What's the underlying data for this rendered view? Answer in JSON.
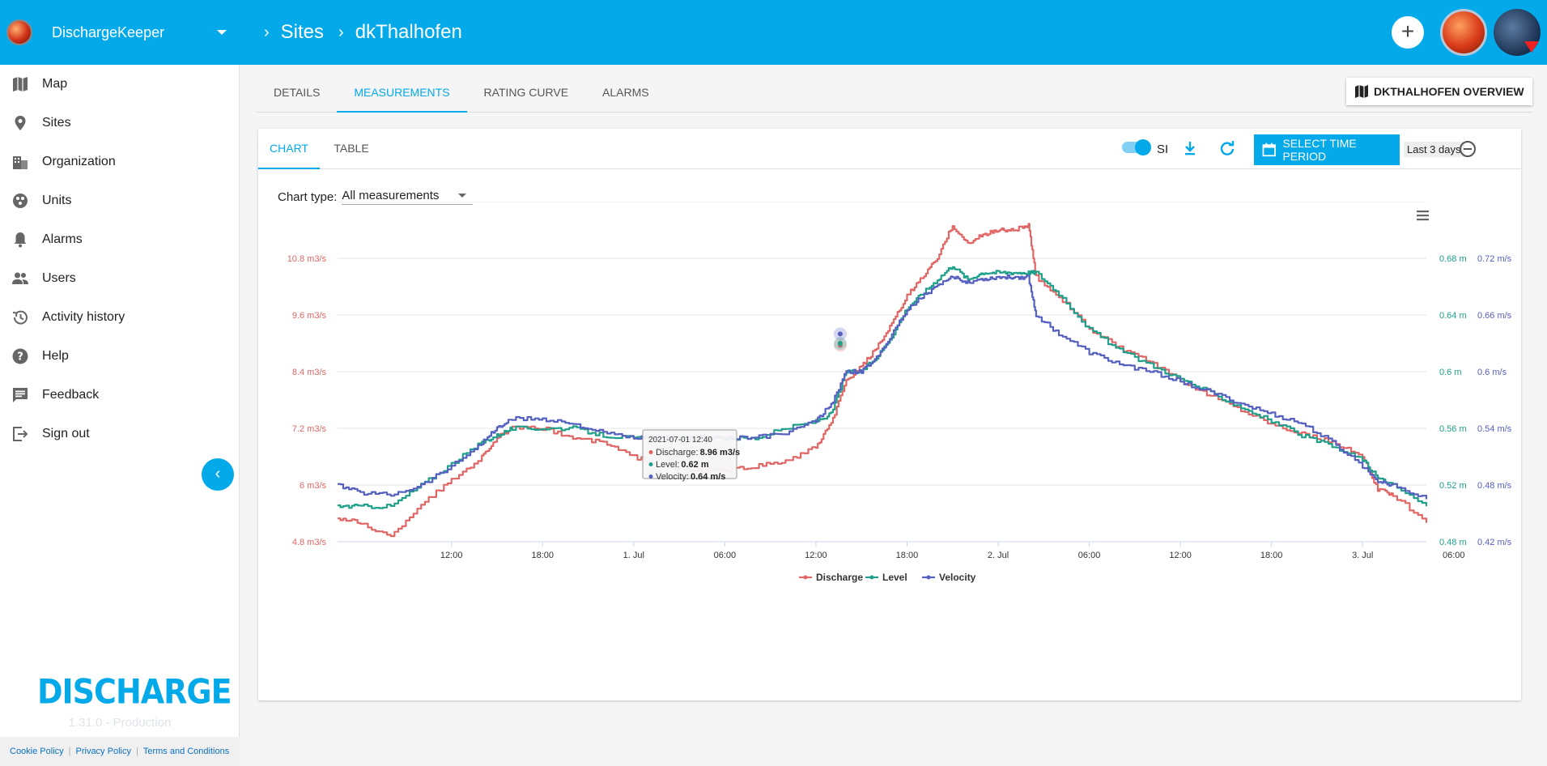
{
  "app": {
    "name": "DischargeKeeper"
  },
  "breadcrumb": {
    "items": [
      "Sites",
      "dkThalhofen"
    ]
  },
  "sidebar": {
    "items": [
      {
        "label": "Map",
        "icon": "map-icon"
      },
      {
        "label": "Sites",
        "icon": "pin-icon"
      },
      {
        "label": "Organization",
        "icon": "building-icon"
      },
      {
        "label": "Units",
        "icon": "units-icon"
      },
      {
        "label": "Alarms",
        "icon": "bell-icon"
      },
      {
        "label": "Users",
        "icon": "users-icon"
      },
      {
        "label": "Activity history",
        "icon": "history-icon"
      },
      {
        "label": "Help",
        "icon": "help-icon"
      },
      {
        "label": "Feedback",
        "icon": "feedback-icon"
      },
      {
        "label": "Sign out",
        "icon": "sign-out-icon"
      }
    ],
    "brand": "DISCHARGE",
    "version": "1.31.0 - Production",
    "footer": [
      "Cookie Policy",
      "Privacy Policy",
      "Terms and Conditions"
    ]
  },
  "tabs": [
    "DETAILS",
    "MEASUREMENTS",
    "RATING CURVE",
    "ALARMS"
  ],
  "overview_button": "DKTHALHOFEN OVERVIEW",
  "card": {
    "tabs": [
      "CHART",
      "TABLE"
    ],
    "si_label": "SI",
    "select_period": "SELECT TIME PERIOD",
    "last_period": "Last 3 days",
    "chart_type_label": "Chart type:",
    "chart_type_value": "All measurements"
  },
  "colors": {
    "accent": "#04a9e9",
    "discharge": "#e06666",
    "level": "#20a08a",
    "velocity": "#5560c0"
  },
  "chart_data": {
    "type": "line",
    "x_ticks": [
      "12:00",
      "18:00",
      "1. Jul",
      "06:00",
      "12:00",
      "18:00",
      "2. Jul",
      "06:00",
      "12:00",
      "18:00",
      "3. Jul",
      "06:00"
    ],
    "y_left_ticks": [
      "4.8 m3/s",
      "6 m3/s",
      "7.2 m3/s",
      "8.4 m3/s",
      "9.6 m3/s",
      "10.8 m3/s"
    ],
    "y_level_ticks": [
      "0.48 m",
      "0.52 m",
      "0.56 m",
      "0.6 m",
      "0.64 m",
      "0.68 m"
    ],
    "y_velocity_ticks": [
      "0.42 m/s",
      "0.48 m/s",
      "0.54 m/s",
      "0.6 m/s",
      "0.66 m/s",
      "0.72 m/s"
    ],
    "ylim_discharge": [
      4.8,
      12.0
    ],
    "ylim_level": [
      0.48,
      0.72
    ],
    "ylim_velocity": [
      0.42,
      0.78
    ],
    "x_hours": [
      -7.5,
      64.2
    ],
    "series": [
      {
        "name": "Discharge",
        "key": "discharge",
        "points": [
          [
            -7.5,
            5.3
          ],
          [
            -6,
            5.2
          ],
          [
            -4,
            4.9
          ],
          [
            -2,
            5.6
          ],
          [
            0,
            6.1
          ],
          [
            2,
            6.6
          ],
          [
            3,
            7.0
          ],
          [
            4,
            7.2
          ],
          [
            6,
            7.2
          ],
          [
            8,
            7.0
          ],
          [
            10,
            6.9
          ],
          [
            12,
            6.6
          ],
          [
            14,
            6.4
          ],
          [
            16,
            6.3
          ],
          [
            18,
            6.3
          ],
          [
            20,
            6.4
          ],
          [
            22,
            6.5
          ],
          [
            24,
            6.8
          ],
          [
            25,
            7.3
          ],
          [
            26,
            8.2
          ],
          [
            27,
            8.5
          ],
          [
            28,
            8.9
          ],
          [
            29,
            9.4
          ],
          [
            30,
            10.0
          ],
          [
            31,
            10.4
          ],
          [
            32,
            10.8
          ],
          [
            33,
            11.5
          ],
          [
            34,
            11.1
          ],
          [
            35,
            11.3
          ],
          [
            36,
            11.4
          ],
          [
            37,
            11.4
          ],
          [
            38,
            11.5
          ],
          [
            38.5,
            10.4
          ],
          [
            40,
            10.0
          ],
          [
            42,
            9.3
          ],
          [
            44,
            8.9
          ],
          [
            46,
            8.6
          ],
          [
            48,
            8.2
          ],
          [
            50,
            7.9
          ],
          [
            52,
            7.6
          ],
          [
            54,
            7.3
          ],
          [
            56,
            7.1
          ],
          [
            58,
            6.9
          ],
          [
            60,
            6.6
          ],
          [
            61,
            5.9
          ],
          [
            62,
            5.8
          ],
          [
            64.2,
            5.2
          ]
        ]
      },
      {
        "name": "Level",
        "key": "level",
        "points": [
          [
            -7.5,
            0.505
          ],
          [
            -6,
            0.505
          ],
          [
            -4,
            0.505
          ],
          [
            -2,
            0.52
          ],
          [
            0,
            0.535
          ],
          [
            2,
            0.55
          ],
          [
            3,
            0.555
          ],
          [
            4,
            0.56
          ],
          [
            6,
            0.56
          ],
          [
            8,
            0.56
          ],
          [
            10,
            0.555
          ],
          [
            12,
            0.553
          ],
          [
            14,
            0.553
          ],
          [
            16,
            0.553
          ],
          [
            18,
            0.553
          ],
          [
            20,
            0.553
          ],
          [
            22,
            0.56
          ],
          [
            24,
            0.565
          ],
          [
            25,
            0.57
          ],
          [
            26,
            0.6
          ],
          [
            27,
            0.6
          ],
          [
            28,
            0.61
          ],
          [
            29,
            0.625
          ],
          [
            30,
            0.645
          ],
          [
            31,
            0.655
          ],
          [
            32,
            0.665
          ],
          [
            33,
            0.675
          ],
          [
            34,
            0.665
          ],
          [
            35,
            0.67
          ],
          [
            36,
            0.67
          ],
          [
            37,
            0.67
          ],
          [
            38,
            0.67
          ],
          [
            38.5,
            0.67
          ],
          [
            40,
            0.655
          ],
          [
            42,
            0.63
          ],
          [
            44,
            0.615
          ],
          [
            46,
            0.605
          ],
          [
            48,
            0.595
          ],
          [
            50,
            0.585
          ],
          [
            52,
            0.575
          ],
          [
            54,
            0.565
          ],
          [
            56,
            0.555
          ],
          [
            58,
            0.547
          ],
          [
            60,
            0.538
          ],
          [
            61,
            0.525
          ],
          [
            62,
            0.52
          ],
          [
            64.2,
            0.505
          ]
        ]
      },
      {
        "name": "Velocity",
        "key": "velocity",
        "points": [
          [
            -7.5,
            0.48
          ],
          [
            -6,
            0.472
          ],
          [
            -4,
            0.47
          ],
          [
            -2,
            0.48
          ],
          [
            0,
            0.5
          ],
          [
            2,
            0.525
          ],
          [
            3,
            0.54
          ],
          [
            4,
            0.55
          ],
          [
            6,
            0.55
          ],
          [
            8,
            0.545
          ],
          [
            10,
            0.535
          ],
          [
            12,
            0.53
          ],
          [
            14,
            0.53
          ],
          [
            16,
            0.53
          ],
          [
            18,
            0.53
          ],
          [
            20,
            0.53
          ],
          [
            22,
            0.535
          ],
          [
            24,
            0.548
          ],
          [
            25,
            0.565
          ],
          [
            26,
            0.6
          ],
          [
            27,
            0.6
          ],
          [
            28,
            0.615
          ],
          [
            29,
            0.64
          ],
          [
            30,
            0.665
          ],
          [
            31,
            0.68
          ],
          [
            32,
            0.69
          ],
          [
            33,
            0.7
          ],
          [
            34,
            0.695
          ],
          [
            35,
            0.698
          ],
          [
            36,
            0.7
          ],
          [
            37,
            0.7
          ],
          [
            38,
            0.7
          ],
          [
            38.5,
            0.66
          ],
          [
            40,
            0.64
          ],
          [
            42,
            0.62
          ],
          [
            44,
            0.608
          ],
          [
            46,
            0.6
          ],
          [
            48,
            0.59
          ],
          [
            50,
            0.578
          ],
          [
            52,
            0.566
          ],
          [
            54,
            0.555
          ],
          [
            56,
            0.545
          ],
          [
            58,
            0.525
          ],
          [
            60,
            0.5
          ],
          [
            61,
            0.485
          ],
          [
            62,
            0.48
          ],
          [
            64.2,
            0.465
          ]
        ]
      }
    ],
    "tooltip": {
      "time": "2021-07-01 12:40",
      "rows": [
        {
          "name": "Discharge",
          "value": "8.96 m3/s",
          "key": "discharge"
        },
        {
          "name": "Level",
          "value": "0.62 m",
          "key": "level"
        },
        {
          "name": "Velocity",
          "value": "0.64 m/s",
          "key": "velocity"
        }
      ]
    },
    "legend": [
      "Discharge",
      "Level",
      "Velocity"
    ],
    "legend_position": "bottom-center"
  }
}
